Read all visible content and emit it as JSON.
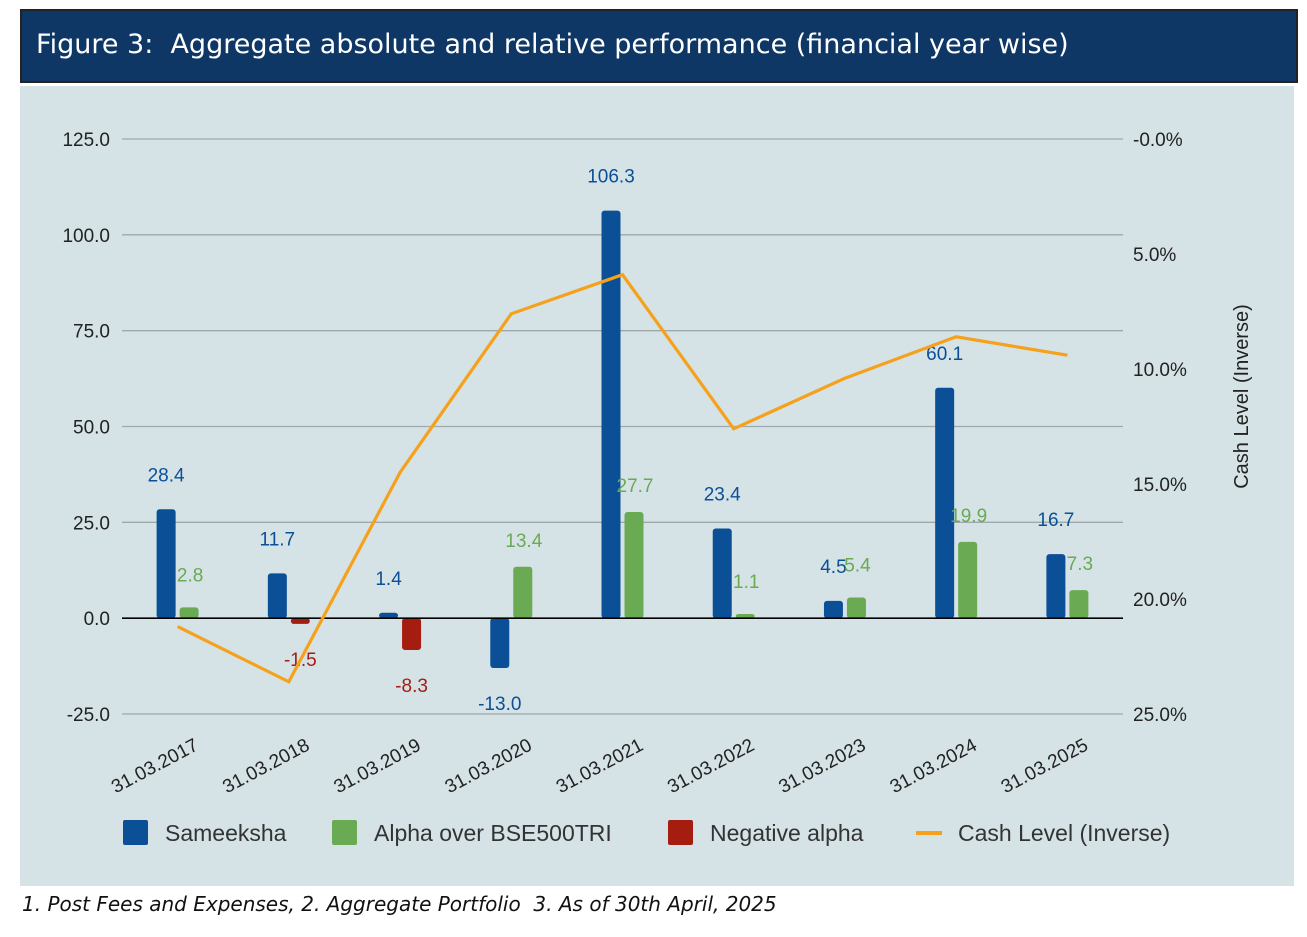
{
  "header": {
    "title": "Figure 3:  Aggregate absolute and relative performance (financial year wise)"
  },
  "footnote": "1. Post Fees and Expenses, 2. Aggregate Portfolio  3. As of 30th April, 2025",
  "colors": {
    "sameeksha": "#0b4f96",
    "alpha": "#6aaa52",
    "negative": "#a51d10",
    "cash": "#f5a11c",
    "grid": "#9fa9ab",
    "panel": "#d5e3e6",
    "header": "#0e3766"
  },
  "chart_data": {
    "type": "bar",
    "categories": [
      "31.03.2017",
      "31.03.2018",
      "31.03.2019",
      "31.03.2020",
      "31.03.2021",
      "31.03.2022",
      "31.03.2023",
      "31.03.2024",
      "31.03.2025"
    ],
    "series": [
      {
        "name": "Sameeksha",
        "type": "bar",
        "values": [
          28.4,
          11.7,
          1.4,
          -13.0,
          106.3,
          23.4,
          4.5,
          60.1,
          16.7
        ],
        "labels": [
          "28.4",
          "11.7",
          "1.4",
          "-13.0",
          "106.3",
          "23.4",
          "4.5",
          "60.1",
          "16.7"
        ]
      },
      {
        "name": "Alpha over BSE500TRI",
        "type": "bar",
        "values": [
          2.8,
          null,
          null,
          13.4,
          27.7,
          1.1,
          5.4,
          19.9,
          7.3
        ],
        "labels": [
          "2.8",
          "",
          "",
          "13.4",
          "27.7",
          "1.1",
          "5.4",
          "19.9",
          "7.3"
        ]
      },
      {
        "name": "Negative alpha",
        "type": "bar",
        "values": [
          null,
          -1.5,
          -8.3,
          null,
          null,
          null,
          null,
          null,
          null
        ],
        "labels": [
          "",
          "-1.5",
          "-8.3",
          "",
          "",
          "",
          "",
          "",
          ""
        ]
      },
      {
        "name": "Cash Level (Inverse)",
        "type": "line",
        "axis": "right",
        "values": [
          21.2,
          23.6,
          14.5,
          7.6,
          5.9,
          12.6,
          10.4,
          8.6,
          9.4
        ]
      }
    ],
    "yticks_left": [
      "125.0",
      "100.0",
      "75.0",
      "50.0",
      "25.0",
      "0.0",
      "-25.0"
    ],
    "ylim_left": [
      -25,
      125
    ],
    "yticks_right": [
      "-0.0%",
      "5.0%",
      "10.0%",
      "15.0%",
      "20.0%",
      "25.0%"
    ],
    "ylim_right_inverted": [
      0,
      25
    ],
    "y2label": "Cash Level (Inverse)",
    "legend": [
      "Sameeksha",
      "Alpha over BSE500TRI",
      "Negative alpha",
      "Cash Level (Inverse)"
    ],
    "legend_position": "bottom",
    "grid": true
  }
}
